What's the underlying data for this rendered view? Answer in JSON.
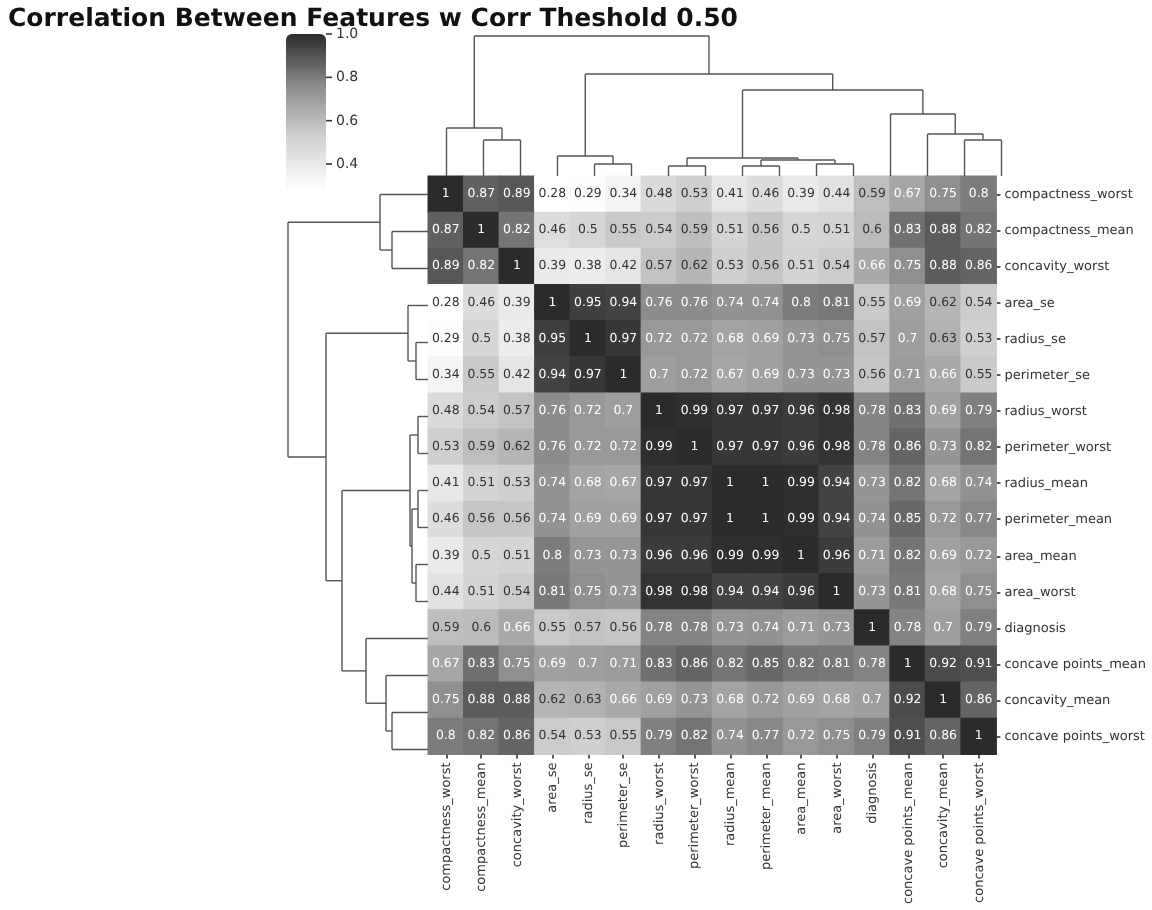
{
  "chart_data": {
    "type": "heatmap",
    "title": "Correlation Between Features w Corr Theshold 0.50",
    "categories": [
      "compactness_worst",
      "compactness_mean",
      "concavity_worst",
      "area_se",
      "radius_se",
      "perimeter_se",
      "radius_worst",
      "perimeter_worst",
      "radius_mean",
      "perimeter_mean",
      "area_mean",
      "area_worst",
      "diagnosis",
      "concave points_mean",
      "concavity_mean",
      "concave points_worst"
    ],
    "y_categories": [
      "compactness_worst",
      "compactness_mean",
      "concavity_worst",
      "area_se",
      "radius_se",
      "perimeter_se",
      "radius_worst",
      "perimeter_worst",
      "radius_mean",
      "perimeter_mean",
      "area_mean",
      "area_worst",
      "diagnosis",
      "concave points_mean",
      "concavity_mean",
      "concave points_worst"
    ],
    "cells": [
      [
        1,
        0.87,
        0.89,
        0.28,
        0.29,
        0.34,
        0.48,
        0.53,
        0.41,
        0.46,
        0.39,
        0.44,
        0.59,
        0.67,
        0.75,
        0.8
      ],
      [
        0.87,
        1,
        0.82,
        0.46,
        0.5,
        0.55,
        0.54,
        0.59,
        0.51,
        0.56,
        0.5,
        0.51,
        0.6,
        0.83,
        0.88,
        0.82
      ],
      [
        0.89,
        0.82,
        1,
        0.39,
        0.38,
        0.42,
        0.57,
        0.62,
        0.53,
        0.56,
        0.51,
        0.54,
        0.66,
        0.75,
        0.88,
        0.86
      ],
      [
        0.28,
        0.46,
        0.39,
        1,
        0.95,
        0.94,
        0.76,
        0.76,
        0.74,
        0.74,
        0.8,
        0.81,
        0.55,
        0.69,
        0.62,
        0.54
      ],
      [
        0.29,
        0.5,
        0.38,
        0.95,
        1,
        0.97,
        0.72,
        0.72,
        0.68,
        0.69,
        0.73,
        0.75,
        0.57,
        0.7,
        0.63,
        0.53
      ],
      [
        0.34,
        0.55,
        0.42,
        0.94,
        0.97,
        1,
        0.7,
        0.72,
        0.67,
        0.69,
        0.73,
        0.73,
        0.56,
        0.71,
        0.66,
        0.55
      ],
      [
        0.48,
        0.54,
        0.57,
        0.76,
        0.72,
        0.7,
        1,
        0.99,
        0.97,
        0.97,
        0.96,
        0.98,
        0.78,
        0.83,
        0.69,
        0.79
      ],
      [
        0.53,
        0.59,
        0.62,
        0.76,
        0.72,
        0.72,
        0.99,
        1,
        0.97,
        0.97,
        0.96,
        0.98,
        0.78,
        0.86,
        0.73,
        0.82
      ],
      [
        0.41,
        0.51,
        0.53,
        0.74,
        0.68,
        0.67,
        0.97,
        0.97,
        1,
        1,
        0.99,
        0.94,
        0.73,
        0.82,
        0.68,
        0.74
      ],
      [
        0.46,
        0.56,
        0.56,
        0.74,
        0.69,
        0.69,
        0.97,
        0.97,
        1,
        1,
        0.99,
        0.94,
        0.74,
        0.85,
        0.72,
        0.77
      ],
      [
        0.39,
        0.5,
        0.51,
        0.8,
        0.73,
        0.73,
        0.96,
        0.96,
        0.99,
        0.99,
        1,
        0.96,
        0.71,
        0.82,
        0.69,
        0.72
      ],
      [
        0.44,
        0.51,
        0.54,
        0.81,
        0.75,
        0.73,
        0.98,
        0.98,
        0.94,
        0.94,
        0.96,
        1,
        0.73,
        0.81,
        0.68,
        0.75
      ],
      [
        0.59,
        0.6,
        0.66,
        0.55,
        0.57,
        0.56,
        0.78,
        0.78,
        0.73,
        0.74,
        0.71,
        0.73,
        1,
        0.78,
        0.7,
        0.79
      ],
      [
        0.67,
        0.83,
        0.75,
        0.69,
        0.7,
        0.71,
        0.83,
        0.86,
        0.82,
        0.85,
        0.82,
        0.81,
        0.78,
        1,
        0.92,
        0.91
      ],
      [
        0.75,
        0.88,
        0.88,
        0.62,
        0.63,
        0.66,
        0.69,
        0.73,
        0.68,
        0.72,
        0.69,
        0.68,
        0.7,
        0.92,
        1,
        0.86
      ],
      [
        0.8,
        0.82,
        0.86,
        0.54,
        0.53,
        0.55,
        0.79,
        0.82,
        0.74,
        0.77,
        0.72,
        0.75,
        0.79,
        0.91,
        0.86,
        1
      ]
    ],
    "clim": [
      0.28,
      1
    ],
    "cticks": [
      0.4,
      0.6,
      0.8,
      {
        "value": 1,
        "label": "1.0"
      }
    ],
    "data_labels": true
  }
}
